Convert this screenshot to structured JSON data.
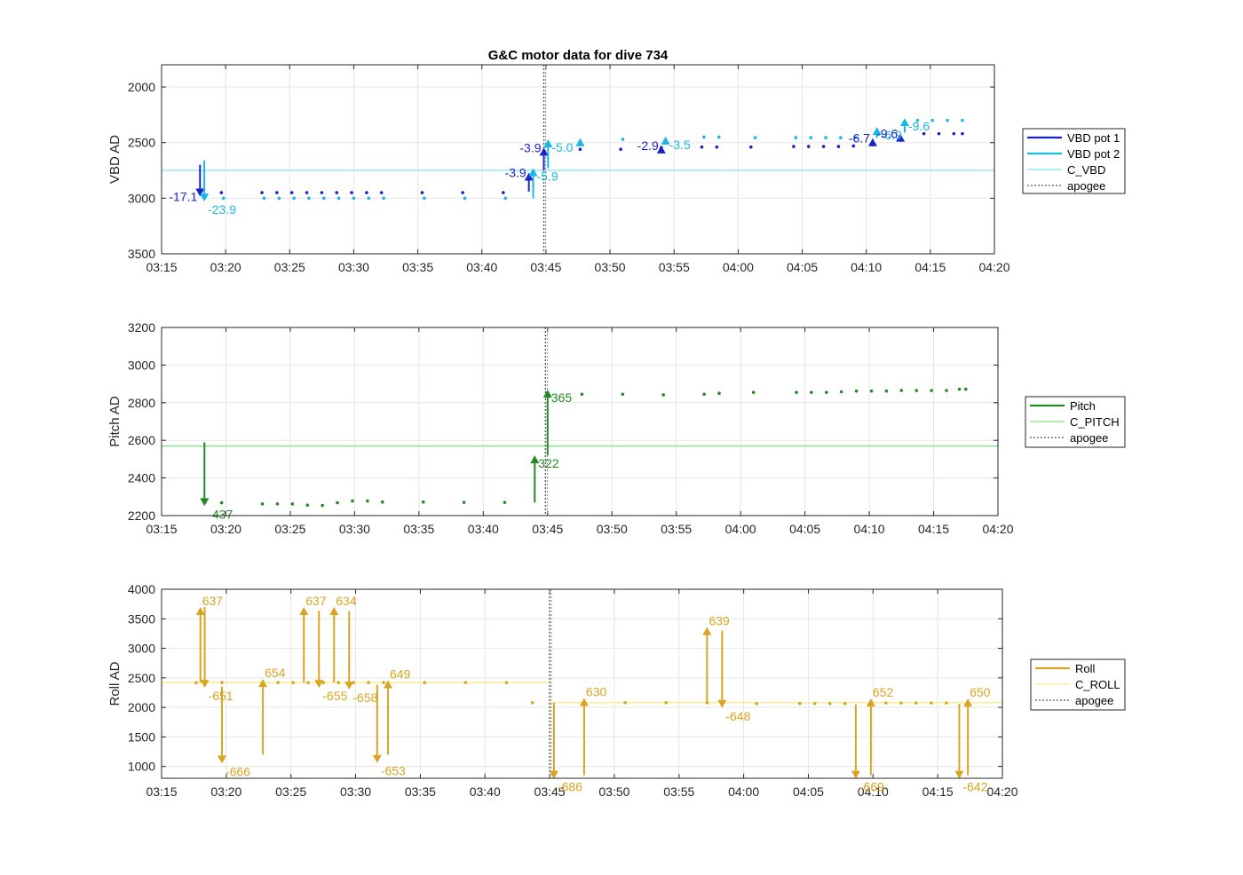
{
  "title": "G&C motor data for dive 734",
  "chart_data": [
    {
      "type": "scatter",
      "ylabel": "VBD AD",
      "ylim": [
        1800,
        3500
      ],
      "yreverse": true,
      "yticks": [
        2000,
        2500,
        3000,
        3500
      ],
      "xlim": [
        "03:15",
        "04:20"
      ],
      "xticks": [
        "03:15",
        "03:20",
        "03:25",
        "03:30",
        "03:35",
        "03:40",
        "03:45",
        "03:50",
        "03:55",
        "04:00",
        "04:05",
        "04:10",
        "04:15",
        "04:20"
      ],
      "grid": true,
      "apogee": "03:44:50",
      "legend_position": "right",
      "series": [
        {
          "name": "VBD pot 1",
          "color": "#1a23c8",
          "points": [
            [
              "03:19:40",
              2950
            ],
            [
              "03:22:50",
              2950
            ],
            [
              "03:24:00",
              2950
            ],
            [
              "03:25:10",
              2950
            ],
            [
              "03:26:20",
              2950
            ],
            [
              "03:27:30",
              2950
            ],
            [
              "03:28:40",
              2950
            ],
            [
              "03:29:50",
              2950
            ],
            [
              "03:31:00",
              2950
            ],
            [
              "03:32:10",
              2950
            ],
            [
              "03:35:20",
              2950
            ],
            [
              "03:38:30",
              2950
            ],
            [
              "03:41:40",
              2950
            ],
            [
              "03:47:40",
              2560
            ],
            [
              "03:50:50",
              2560
            ],
            [
              "03:54:00",
              2545
            ],
            [
              "03:57:10",
              2540
            ],
            [
              "03:58:20",
              2540
            ],
            [
              "04:01:00",
              2540
            ],
            [
              "04:04:20",
              2535
            ],
            [
              "04:05:30",
              2535
            ],
            [
              "04:06:40",
              2535
            ],
            [
              "04:07:50",
              2535
            ],
            [
              "04:09:00",
              2530
            ],
            [
              "04:14:30",
              2420
            ],
            [
              "04:15:40",
              2420
            ],
            [
              "04:16:50",
              2420
            ],
            [
              "04:17:30",
              2420
            ]
          ]
        },
        {
          "name": "VBD pot 2",
          "color": "#19b7e6",
          "points": [
            [
              "03:19:50",
              3000
            ],
            [
              "03:23:00",
              3000
            ],
            [
              "03:24:10",
              3000
            ],
            [
              "03:25:20",
              3000
            ],
            [
              "03:26:30",
              3000
            ],
            [
              "03:27:40",
              3000
            ],
            [
              "03:28:50",
              3000
            ],
            [
              "03:30:00",
              3000
            ],
            [
              "03:31:10",
              3000
            ],
            [
              "03:32:20",
              3000
            ],
            [
              "03:35:30",
              3000
            ],
            [
              "03:38:40",
              3000
            ],
            [
              "03:41:50",
              3000
            ],
            [
              "03:51:00",
              2470
            ],
            [
              "03:57:20",
              2450
            ],
            [
              "03:58:30",
              2450
            ],
            [
              "04:01:20",
              2455
            ],
            [
              "04:04:30",
              2455
            ],
            [
              "04:05:40",
              2455
            ],
            [
              "04:06:50",
              2455
            ],
            [
              "04:08:00",
              2455
            ],
            [
              "04:09:10",
              2455
            ],
            [
              "04:14:00",
              2300
            ],
            [
              "04:15:10",
              2300
            ],
            [
              "04:16:20",
              2300
            ],
            [
              "04:17:30",
              2300
            ]
          ]
        },
        {
          "name": "C_VBD",
          "color": "#7fe3ea",
          "line": 2750
        },
        {
          "name": "apogee",
          "color": "#555555",
          "dotted": true
        }
      ],
      "arrows": [
        {
          "x": "03:18:00",
          "from": 2700,
          "to": 2985,
          "label": "-17.1",
          "color": "#1a23c8",
          "label_side": "left"
        },
        {
          "x": "03:18:20",
          "from": 2660,
          "to": 3030,
          "label": "-23.9",
          "color": "#19b7e6",
          "label_side": "right-below"
        },
        {
          "x": "03:43:40",
          "from": 2940,
          "to": 2770,
          "label": "-3.9",
          "color": "#1a23c8",
          "label_side": "left"
        },
        {
          "x": "03:44:00",
          "from": 3000,
          "to": 2730,
          "label": "-5.9",
          "color": "#19b7e6",
          "label_side": "right-below"
        },
        {
          "x": "03:44:50",
          "from": 2750,
          "to": 2545,
          "label": "-3.9",
          "color": "#1a23c8",
          "label_side": "left"
        },
        {
          "x": "03:45:10",
          "from": 2730,
          "to": 2470,
          "label": "-5.0",
          "color": "#19b7e6",
          "label_side": "right-below"
        },
        {
          "x": "03:47:40",
          "from": 2470,
          "to": 2460,
          "label": "",
          "color": "#19b7e6",
          "label_side": "none"
        },
        {
          "x": "03:54:00",
          "from": 2560,
          "to": 2525,
          "label": "-2.9",
          "color": "#1a23c8",
          "label_side": "left"
        },
        {
          "x": "03:54:20",
          "from": 2460,
          "to": 2445,
          "label": "-3.5",
          "color": "#19b7e6",
          "label_side": "right-below"
        },
        {
          "x": "04:10:30",
          "from": 2530,
          "to": 2460,
          "label": "-6.7",
          "color": "#1a23c8",
          "label_side": "left"
        },
        {
          "x": "04:10:50",
          "from": 2455,
          "to": 2360,
          "label": "-6.9",
          "color": "#19b7e6",
          "label_side": "right-below"
        },
        {
          "x": "04:12:40",
          "from": 2440,
          "to": 2420,
          "label": "-9.6",
          "color": "#1a23c8",
          "label_side": "left"
        },
        {
          "x": "04:13:00",
          "from": 2410,
          "to": 2280,
          "label": "-9.6",
          "color": "#19b7e6",
          "label_side": "right-below"
        }
      ]
    },
    {
      "type": "scatter",
      "ylabel": "Pitch AD",
      "ylim": [
        2200,
        3200
      ],
      "yreverse": false,
      "yticks": [
        2200,
        2400,
        2600,
        2800,
        3000,
        3200
      ],
      "xlim": [
        "03:15",
        "04:20"
      ],
      "xticks": [
        "03:15",
        "03:20",
        "03:25",
        "03:30",
        "03:35",
        "03:40",
        "03:45",
        "03:50",
        "03:55",
        "04:00",
        "04:05",
        "04:10",
        "04:15",
        "04:20"
      ],
      "grid": true,
      "apogee": "03:44:50",
      "legend_position": "right",
      "series": [
        {
          "name": "Pitch",
          "color": "#238a23",
          "points": [
            [
              "03:19:40",
              2268
            ],
            [
              "03:22:50",
              2262
            ],
            [
              "03:24:00",
              2262
            ],
            [
              "03:25:10",
              2262
            ],
            [
              "03:26:20",
              2256
            ],
            [
              "03:27:30",
              2254
            ],
            [
              "03:28:40",
              2268
            ],
            [
              "03:29:50",
              2278
            ],
            [
              "03:31:00",
              2278
            ],
            [
              "03:32:10",
              2272
            ],
            [
              "03:35:20",
              2272
            ],
            [
              "03:38:30",
              2270
            ],
            [
              "03:41:40",
              2270
            ],
            [
              "03:47:40",
              2845
            ],
            [
              "03:50:50",
              2845
            ],
            [
              "03:54:00",
              2842
            ],
            [
              "03:57:10",
              2845
            ],
            [
              "03:58:20",
              2850
            ],
            [
              "04:01:00",
              2855
            ],
            [
              "04:04:20",
              2855
            ],
            [
              "04:05:30",
              2855
            ],
            [
              "04:06:40",
              2855
            ],
            [
              "04:07:50",
              2858
            ],
            [
              "04:09:00",
              2862
            ],
            [
              "04:10:10",
              2862
            ],
            [
              "04:11:20",
              2862
            ],
            [
              "04:12:30",
              2865
            ],
            [
              "04:13:40",
              2865
            ],
            [
              "04:14:50",
              2865
            ],
            [
              "04:16:00",
              2865
            ],
            [
              "04:17:00",
              2872
            ],
            [
              "04:17:30",
              2872
            ]
          ]
        },
        {
          "name": "C_PITCH",
          "color": "#7fe07f",
          "line": 2570
        },
        {
          "name": "apogee",
          "color": "#555555",
          "dotted": true
        }
      ],
      "arrows": [
        {
          "x": "03:18:20",
          "from": 2590,
          "to": 2250,
          "label": "-437",
          "color": "#238a23",
          "label_side": "right-below"
        },
        {
          "x": "03:44:00",
          "from": 2270,
          "to": 2520,
          "label": "322",
          "color": "#238a23",
          "label_side": "right-below"
        },
        {
          "x": "03:45:00",
          "from": 2520,
          "to": 2870,
          "label": "365",
          "color": "#238a23",
          "label_side": "right-below"
        }
      ]
    },
    {
      "type": "scatter",
      "ylabel": "Roll AD",
      "ylim": [
        800,
        4000
      ],
      "yreverse": false,
      "yticks": [
        1000,
        1500,
        2000,
        2500,
        3000,
        3500,
        4000
      ],
      "xlim": [
        "03:15",
        "04:20"
      ],
      "xticks": [
        "03:15",
        "03:20",
        "03:25",
        "03:30",
        "03:35",
        "03:40",
        "03:45",
        "03:50",
        "03:55",
        "04:00",
        "04:05",
        "04:10",
        "04:15",
        "04:20"
      ],
      "grid": true,
      "apogee": "03:45:00",
      "legend_position": "right",
      "series": [
        {
          "name": "Roll",
          "color": "#d9a421",
          "points": [
            [
              "03:17:40",
              2420
            ],
            [
              "03:19:40",
              2420
            ],
            [
              "03:22:50",
              2420
            ],
            [
              "03:24:00",
              2420
            ],
            [
              "03:25:10",
              2420
            ],
            [
              "03:26:20",
              2420
            ],
            [
              "03:27:30",
              2420
            ],
            [
              "03:28:40",
              2420
            ],
            [
              "03:29:50",
              2420
            ],
            [
              "03:31:00",
              2420
            ],
            [
              "03:32:10",
              2420
            ],
            [
              "03:35:20",
              2420
            ],
            [
              "03:38:30",
              2420
            ],
            [
              "03:41:40",
              2420
            ],
            [
              "03:43:40",
              2080
            ],
            [
              "03:47:40",
              2080
            ],
            [
              "03:50:50",
              2080
            ],
            [
              "03:54:00",
              2080
            ],
            [
              "03:57:10",
              2080
            ],
            [
              "04:01:00",
              2065
            ],
            [
              "04:04:20",
              2065
            ],
            [
              "04:05:30",
              2065
            ],
            [
              "04:06:40",
              2065
            ],
            [
              "04:07:50",
              2065
            ],
            [
              "04:11:00",
              2075
            ],
            [
              "04:12:10",
              2075
            ],
            [
              "04:13:20",
              2075
            ],
            [
              "04:14:30",
              2075
            ],
            [
              "04:15:40",
              2075
            ]
          ]
        },
        {
          "name": "C_ROLL",
          "color": "#f7ec8a",
          "lines": [
            {
              "from": "03:15",
              "to": "03:44:50",
              "y": 2420
            },
            {
              "from": "03:44:50",
              "to": "04:20",
              "y": 2080
            }
          ]
        },
        {
          "name": "apogee",
          "color": "#555555",
          "dotted": true
        }
      ],
      "arrows": [
        {
          "x": "03:18:00",
          "from": 2420,
          "to": 3700,
          "label": "637",
          "color": "#d9a421",
          "label_side": "right-above"
        },
        {
          "x": "03:18:20",
          "from": 3700,
          "to": 2330,
          "label": "-651",
          "color": "#d9a421",
          "label_side": "right-below"
        },
        {
          "x": "03:19:40",
          "from": 2350,
          "to": 1050,
          "label": "-666",
          "color": "#d9a421",
          "label_side": "right-below"
        },
        {
          "x": "03:22:50",
          "from": 1200,
          "to": 2480,
          "label": "654",
          "color": "#d9a421",
          "label_side": "right-above"
        },
        {
          "x": "03:26:00",
          "from": 2420,
          "to": 3700,
          "label": "637",
          "color": "#d9a421",
          "label_side": "right-above"
        },
        {
          "x": "03:27:10",
          "from": 3640,
          "to": 2330,
          "label": "-655",
          "color": "#d9a421",
          "label_side": "right-below"
        },
        {
          "x": "03:28:20",
          "from": 2420,
          "to": 3700,
          "label": "634",
          "color": "#d9a421",
          "label_side": "right-above"
        },
        {
          "x": "03:29:30",
          "from": 3630,
          "to": 2300,
          "label": "-658",
          "color": "#d9a421",
          "label_side": "right-below"
        },
        {
          "x": "03:31:40",
          "from": 2380,
          "to": 1060,
          "label": "-653",
          "color": "#d9a421",
          "label_side": "right-below"
        },
        {
          "x": "03:32:30",
          "from": 1200,
          "to": 2460,
          "label": "649",
          "color": "#d9a421",
          "label_side": "right-above"
        },
        {
          "x": "03:45:20",
          "from": 2080,
          "to": 790,
          "label": "-686",
          "color": "#d9a421",
          "label_side": "right-below"
        },
        {
          "x": "03:47:40",
          "from": 850,
          "to": 2160,
          "label": "630",
          "color": "#d9a421",
          "label_side": "right-above"
        },
        {
          "x": "03:57:10",
          "from": 2090,
          "to": 3360,
          "label": "639",
          "color": "#d9a421",
          "label_side": "right-above"
        },
        {
          "x": "03:58:20",
          "from": 3300,
          "to": 1990,
          "label": "-648",
          "color": "#d9a421",
          "label_side": "right-below"
        },
        {
          "x": "04:08:40",
          "from": 2050,
          "to": 790,
          "label": "-669",
          "color": "#d9a421",
          "label_side": "right-below"
        },
        {
          "x": "04:09:50",
          "from": 850,
          "to": 2150,
          "label": "652",
          "color": "#d9a421",
          "label_side": "right-above"
        },
        {
          "x": "04:16:40",
          "from": 2060,
          "to": 790,
          "label": "-642",
          "color": "#d9a421",
          "label_side": "right-below"
        },
        {
          "x": "04:17:20",
          "from": 850,
          "to": 2150,
          "label": "650",
          "color": "#d9a421",
          "label_side": "right-above"
        }
      ]
    }
  ]
}
